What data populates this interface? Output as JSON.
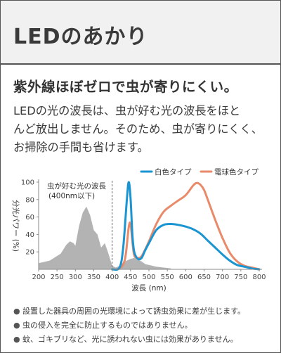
{
  "header": {
    "title": "LEDのあかり"
  },
  "headline": "紫外線ほぼゼロで虫が寄りにくい。",
  "body_lines": [
    "LEDの光の波長は、虫が好む光の波長をほと",
    "んど放出しません。そのため、虫が寄りにくく、",
    "お掃除の手間も省けます。"
  ],
  "notes": [
    "設置した器具の周囲の光環境によって誘虫効果に差が生じます。",
    "虫の侵入を完全に防止するものではありません。",
    "蚊、ゴキブリなど、光に誘われない虫には効果がありません。"
  ],
  "chart_data": {
    "type": "area",
    "xlabel": "波長 (nm)",
    "ylabel": "分光パワー (%)",
    "xlim": [
      200,
      800
    ],
    "ylim": [
      0,
      100
    ],
    "x_ticks": [
      200,
      250,
      300,
      350,
      400,
      450,
      500,
      550,
      600,
      650,
      700,
      750,
      800
    ],
    "y_ticks": [
      20,
      40,
      60,
      80,
      100
    ],
    "grid": false,
    "legend_position": "top-right",
    "annotation": {
      "line1": "虫が好む光の波長",
      "line2": "(400nm以下)"
    },
    "divider_x": 400,
    "colors": {
      "insect": "#b3b3b3",
      "white": "#1a95d1",
      "bulb": "#e98a6a",
      "axis": "#888888"
    },
    "series": [
      {
        "name": "",
        "style": "filled",
        "x": [
          200,
          230,
          260,
          275,
          285,
          295,
          300,
          310,
          320,
          330,
          340,
          350,
          360,
          370,
          380,
          390,
          400,
          410,
          420,
          430,
          440,
          450,
          460,
          470,
          480,
          490,
          500,
          520,
          540,
          560
        ],
        "y": [
          7,
          10,
          18,
          28,
          32,
          30,
          27,
          50,
          65,
          72,
          62,
          45,
          40,
          25,
          30,
          18,
          4,
          2,
          4,
          8,
          10,
          12,
          13,
          11,
          9,
          6,
          5,
          3,
          2,
          1
        ]
      },
      {
        "name": "白色タイプ",
        "style": "line",
        "x": [
          400,
          420,
          430,
          440,
          445,
          450,
          455,
          460,
          470,
          480,
          490,
          500,
          520,
          540,
          560,
          580,
          600,
          620,
          640,
          660,
          680,
          700,
          720,
          740,
          760,
          780,
          800
        ],
        "y": [
          0,
          2,
          25,
          80,
          100,
          82,
          40,
          20,
          12,
          13,
          22,
          30,
          45,
          51,
          52,
          51,
          49,
          46,
          41,
          33,
          25,
          17,
          10,
          5,
          3,
          1,
          0
        ],
        "color": "#1a95d1"
      },
      {
        "name": "電球色タイプ",
        "style": "line",
        "x": [
          400,
          420,
          435,
          445,
          450,
          455,
          460,
          470,
          480,
          490,
          500,
          520,
          540,
          560,
          580,
          600,
          620,
          630,
          640,
          650,
          660,
          680,
          700,
          720,
          740,
          760,
          780,
          800
        ],
        "y": [
          0,
          1,
          12,
          48,
          52,
          32,
          16,
          13,
          15,
          23,
          32,
          52,
          66,
          73,
          79,
          85,
          96,
          99,
          97,
          91,
          80,
          57,
          36,
          19,
          9,
          4,
          2,
          0
        ],
        "color": "#e98a6a"
      }
    ]
  }
}
